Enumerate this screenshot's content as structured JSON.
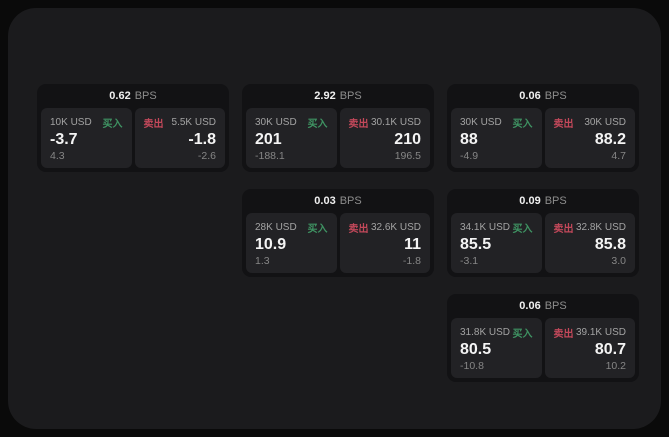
{
  "colors": {
    "buy": "#3f9463",
    "sell": "#c2485a",
    "background": "#0a0a0a",
    "container": "#1b1b1d",
    "card": "#121214",
    "panel": "#222225"
  },
  "cards": [
    {
      "bps_value": "0.62",
      "bps_unit": "BPS",
      "buy": {
        "amount": "10K USD",
        "side_label": "买入",
        "value": "-3.7",
        "sub_value": "4.3"
      },
      "sell": {
        "side_label": "卖出",
        "amount": "5.5K USD",
        "value": "-1.8",
        "sub_value": "-2.6"
      }
    },
    {
      "bps_value": "2.92",
      "bps_unit": "BPS",
      "buy": {
        "amount": "30K USD",
        "side_label": "买入",
        "value": "201",
        "sub_value": "-188.1"
      },
      "sell": {
        "side_label": "卖出",
        "amount": "30.1K USD",
        "value": "210",
        "sub_value": "196.5"
      }
    },
    {
      "bps_value": "0.06",
      "bps_unit": "BPS",
      "buy": {
        "amount": "30K USD",
        "side_label": "买入",
        "value": "88",
        "sub_value": "-4.9"
      },
      "sell": {
        "side_label": "卖出",
        "amount": "30K USD",
        "value": "88.2",
        "sub_value": "4.7"
      }
    },
    {
      "bps_value": "0.03",
      "bps_unit": "BPS",
      "buy": {
        "amount": "28K USD",
        "side_label": "买入",
        "value": "10.9",
        "sub_value": "1.3"
      },
      "sell": {
        "side_label": "卖出",
        "amount": "32.6K USD",
        "value": "11",
        "sub_value": "-1.8"
      }
    },
    {
      "bps_value": "0.09",
      "bps_unit": "BPS",
      "buy": {
        "amount": "34.1K USD",
        "side_label": "买入",
        "value": "85.5",
        "sub_value": "-3.1"
      },
      "sell": {
        "side_label": "卖出",
        "amount": "32.8K USD",
        "value": "85.8",
        "sub_value": "3.0"
      }
    },
    {
      "bps_value": "0.06",
      "bps_unit": "BPS",
      "buy": {
        "amount": "31.8K USD",
        "side_label": "买入",
        "value": "80.5",
        "sub_value": "-10.8"
      },
      "sell": {
        "side_label": "卖出",
        "amount": "39.1K USD",
        "value": "80.7",
        "sub_value": "10.2"
      }
    }
  ]
}
